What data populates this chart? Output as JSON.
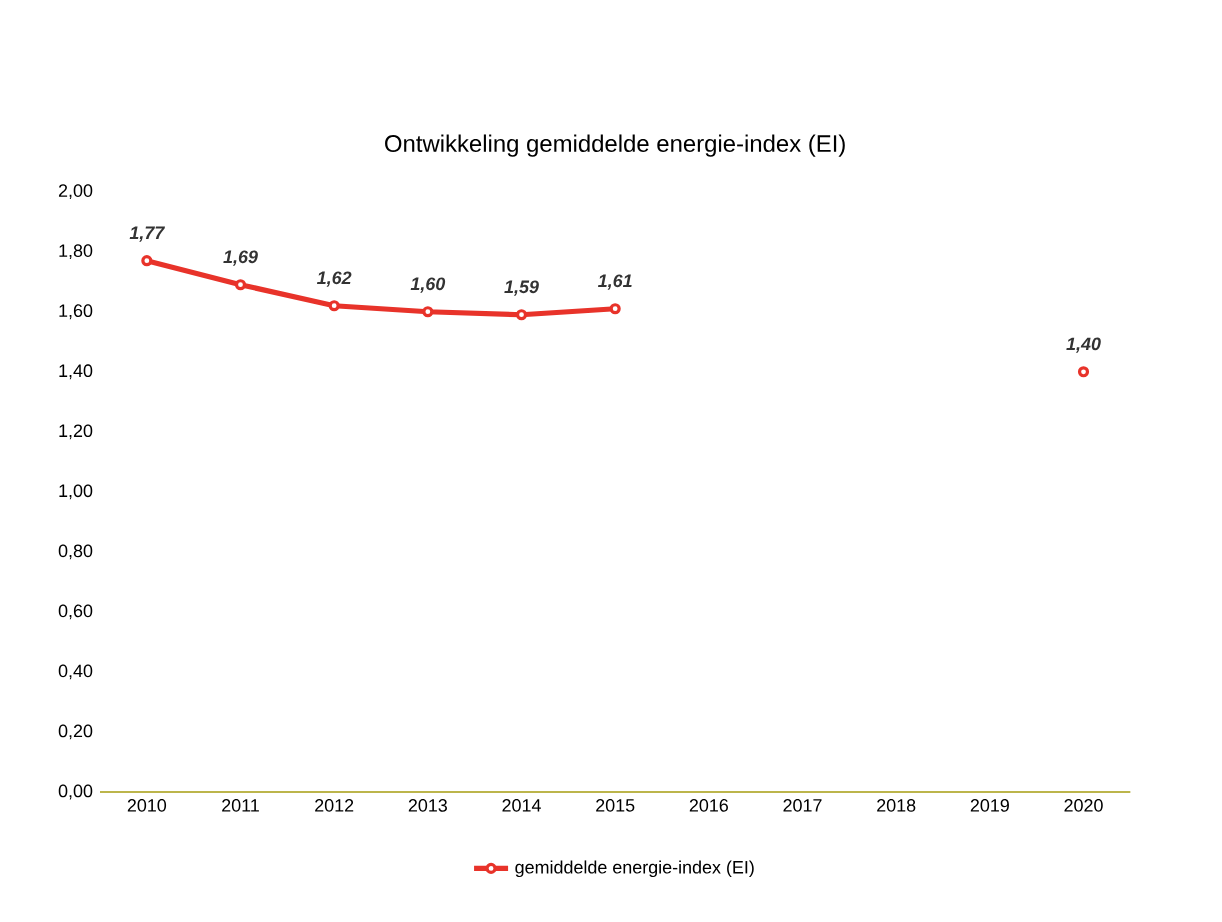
{
  "chart_data": {
    "type": "line",
    "title": "Ontwikkeling gemiddelde energie-index (EI)",
    "categories": [
      "2010",
      "2011",
      "2012",
      "2013",
      "2014",
      "2015",
      "2016",
      "2017",
      "2018",
      "2019",
      "2020"
    ],
    "series": [
      {
        "name": "gemiddelde energie-index (EI)",
        "color": "#e8332a",
        "values": [
          1.77,
          1.69,
          1.62,
          1.6,
          1.59,
          1.61,
          null,
          null,
          null,
          null,
          1.4
        ],
        "value_labels": [
          "1,77",
          "1,69",
          "1,62",
          "1,60",
          "1,59",
          "1,61",
          null,
          null,
          null,
          null,
          "1,40"
        ]
      }
    ],
    "ylim": [
      0,
      2
    ],
    "yticks": [
      {
        "value": 0,
        "label": "0,00"
      },
      {
        "value": 0.2,
        "label": "0,20"
      },
      {
        "value": 0.4,
        "label": "0,40"
      },
      {
        "value": 0.6,
        "label": "0,60"
      },
      {
        "value": 0.8,
        "label": "0,80"
      },
      {
        "value": 1.0,
        "label": "1,00"
      },
      {
        "value": 1.2,
        "label": "1,20"
      },
      {
        "value": 1.4,
        "label": "1,40"
      },
      {
        "value": 1.6,
        "label": "1,60"
      },
      {
        "value": 1.8,
        "label": "1,80"
      },
      {
        "value": 2.0,
        "label": "2,00"
      }
    ],
    "marker": "circle",
    "line_style": "solid",
    "legend": "bottom",
    "grid": false
  }
}
